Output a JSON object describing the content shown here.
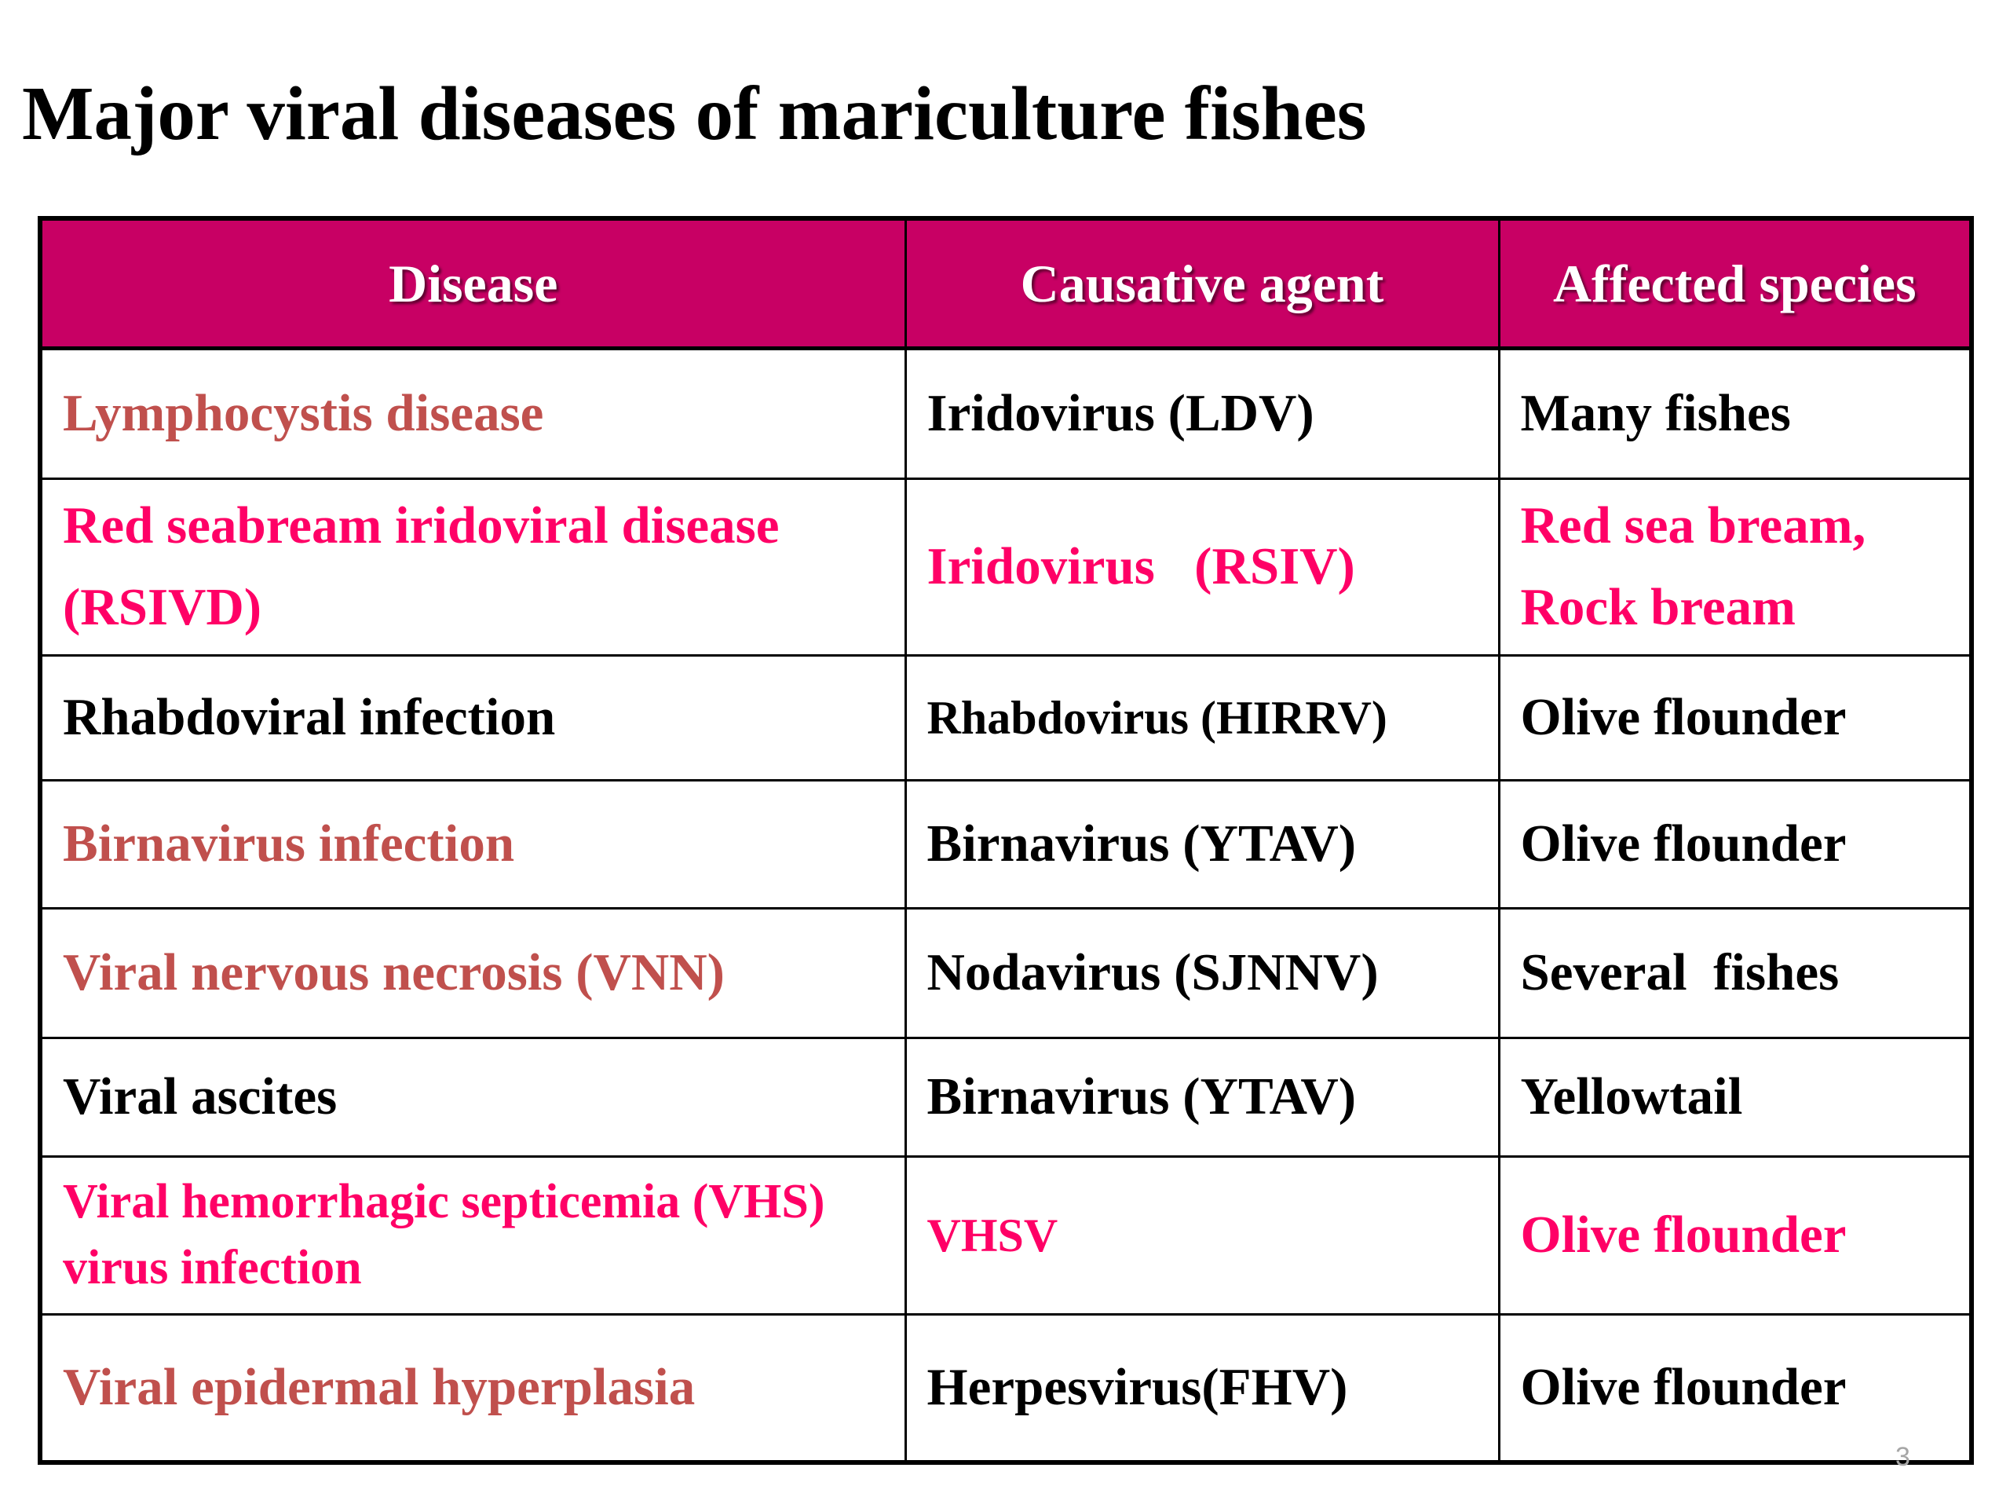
{
  "slide": {
    "title": "Major viral diseases of mariculture fishes",
    "page_number": "3"
  },
  "colors": {
    "header_bg": "#c80064",
    "header_text": "#ffffff",
    "brown_text": "#c0504d",
    "pink_text": "#ff0066",
    "black_text": "#000000"
  },
  "table": {
    "headers": [
      "Disease",
      "Causative agent",
      "Affected species"
    ],
    "rows": [
      {
        "disease": "Lymphocystis disease",
        "agent": "Iridovirus (LDV)",
        "species": "Many fishes",
        "disease_color": "brown",
        "agent_color": "black",
        "species_color": "black"
      },
      {
        "disease_line1": "Red seabream iridoviral disease",
        "disease_line2": "(RSIVD)",
        "agent": "Iridovirus   (RSIV)",
        "species_line1": "Red sea bream,",
        "species_line2": "Rock bream",
        "disease_color": "pink",
        "agent_color": "pink",
        "species_color": "pink"
      },
      {
        "disease": "Rhabdoviral infection",
        "agent": "Rhabdovirus (HIRRV)",
        "species": "Olive flounder",
        "disease_color": "black",
        "agent_color": "black",
        "species_color": "black"
      },
      {
        "disease": "Birnavirus infection",
        "agent": "Birnavirus (YTAV)",
        "species": "Olive flounder",
        "disease_color": "brown",
        "agent_color": "black",
        "species_color": "black"
      },
      {
        "disease": "Viral nervous necrosis (VNN)",
        "agent": "Nodavirus (SJNNV)",
        "species": "Several  fishes",
        "disease_color": "brown",
        "agent_color": "black",
        "species_color": "black"
      },
      {
        "disease": "Viral ascites",
        "agent": "Birnavirus (YTAV)",
        "species": "Yellowtail",
        "disease_color": "black",
        "agent_color": "black",
        "species_color": "black"
      },
      {
        "disease_line1": "Viral hemorrhagic septicemia (VHS)",
        "disease_line2": "virus infection",
        "agent": "VHSV",
        "species": "Olive flounder",
        "disease_color": "pink",
        "agent_color": "pink",
        "species_color": "pink"
      },
      {
        "disease": "Viral epidermal hyperplasia",
        "agent": "Herpesvirus(FHV)",
        "species": "Olive flounder",
        "disease_color": "brown",
        "agent_color": "black",
        "species_color": "black"
      }
    ]
  }
}
